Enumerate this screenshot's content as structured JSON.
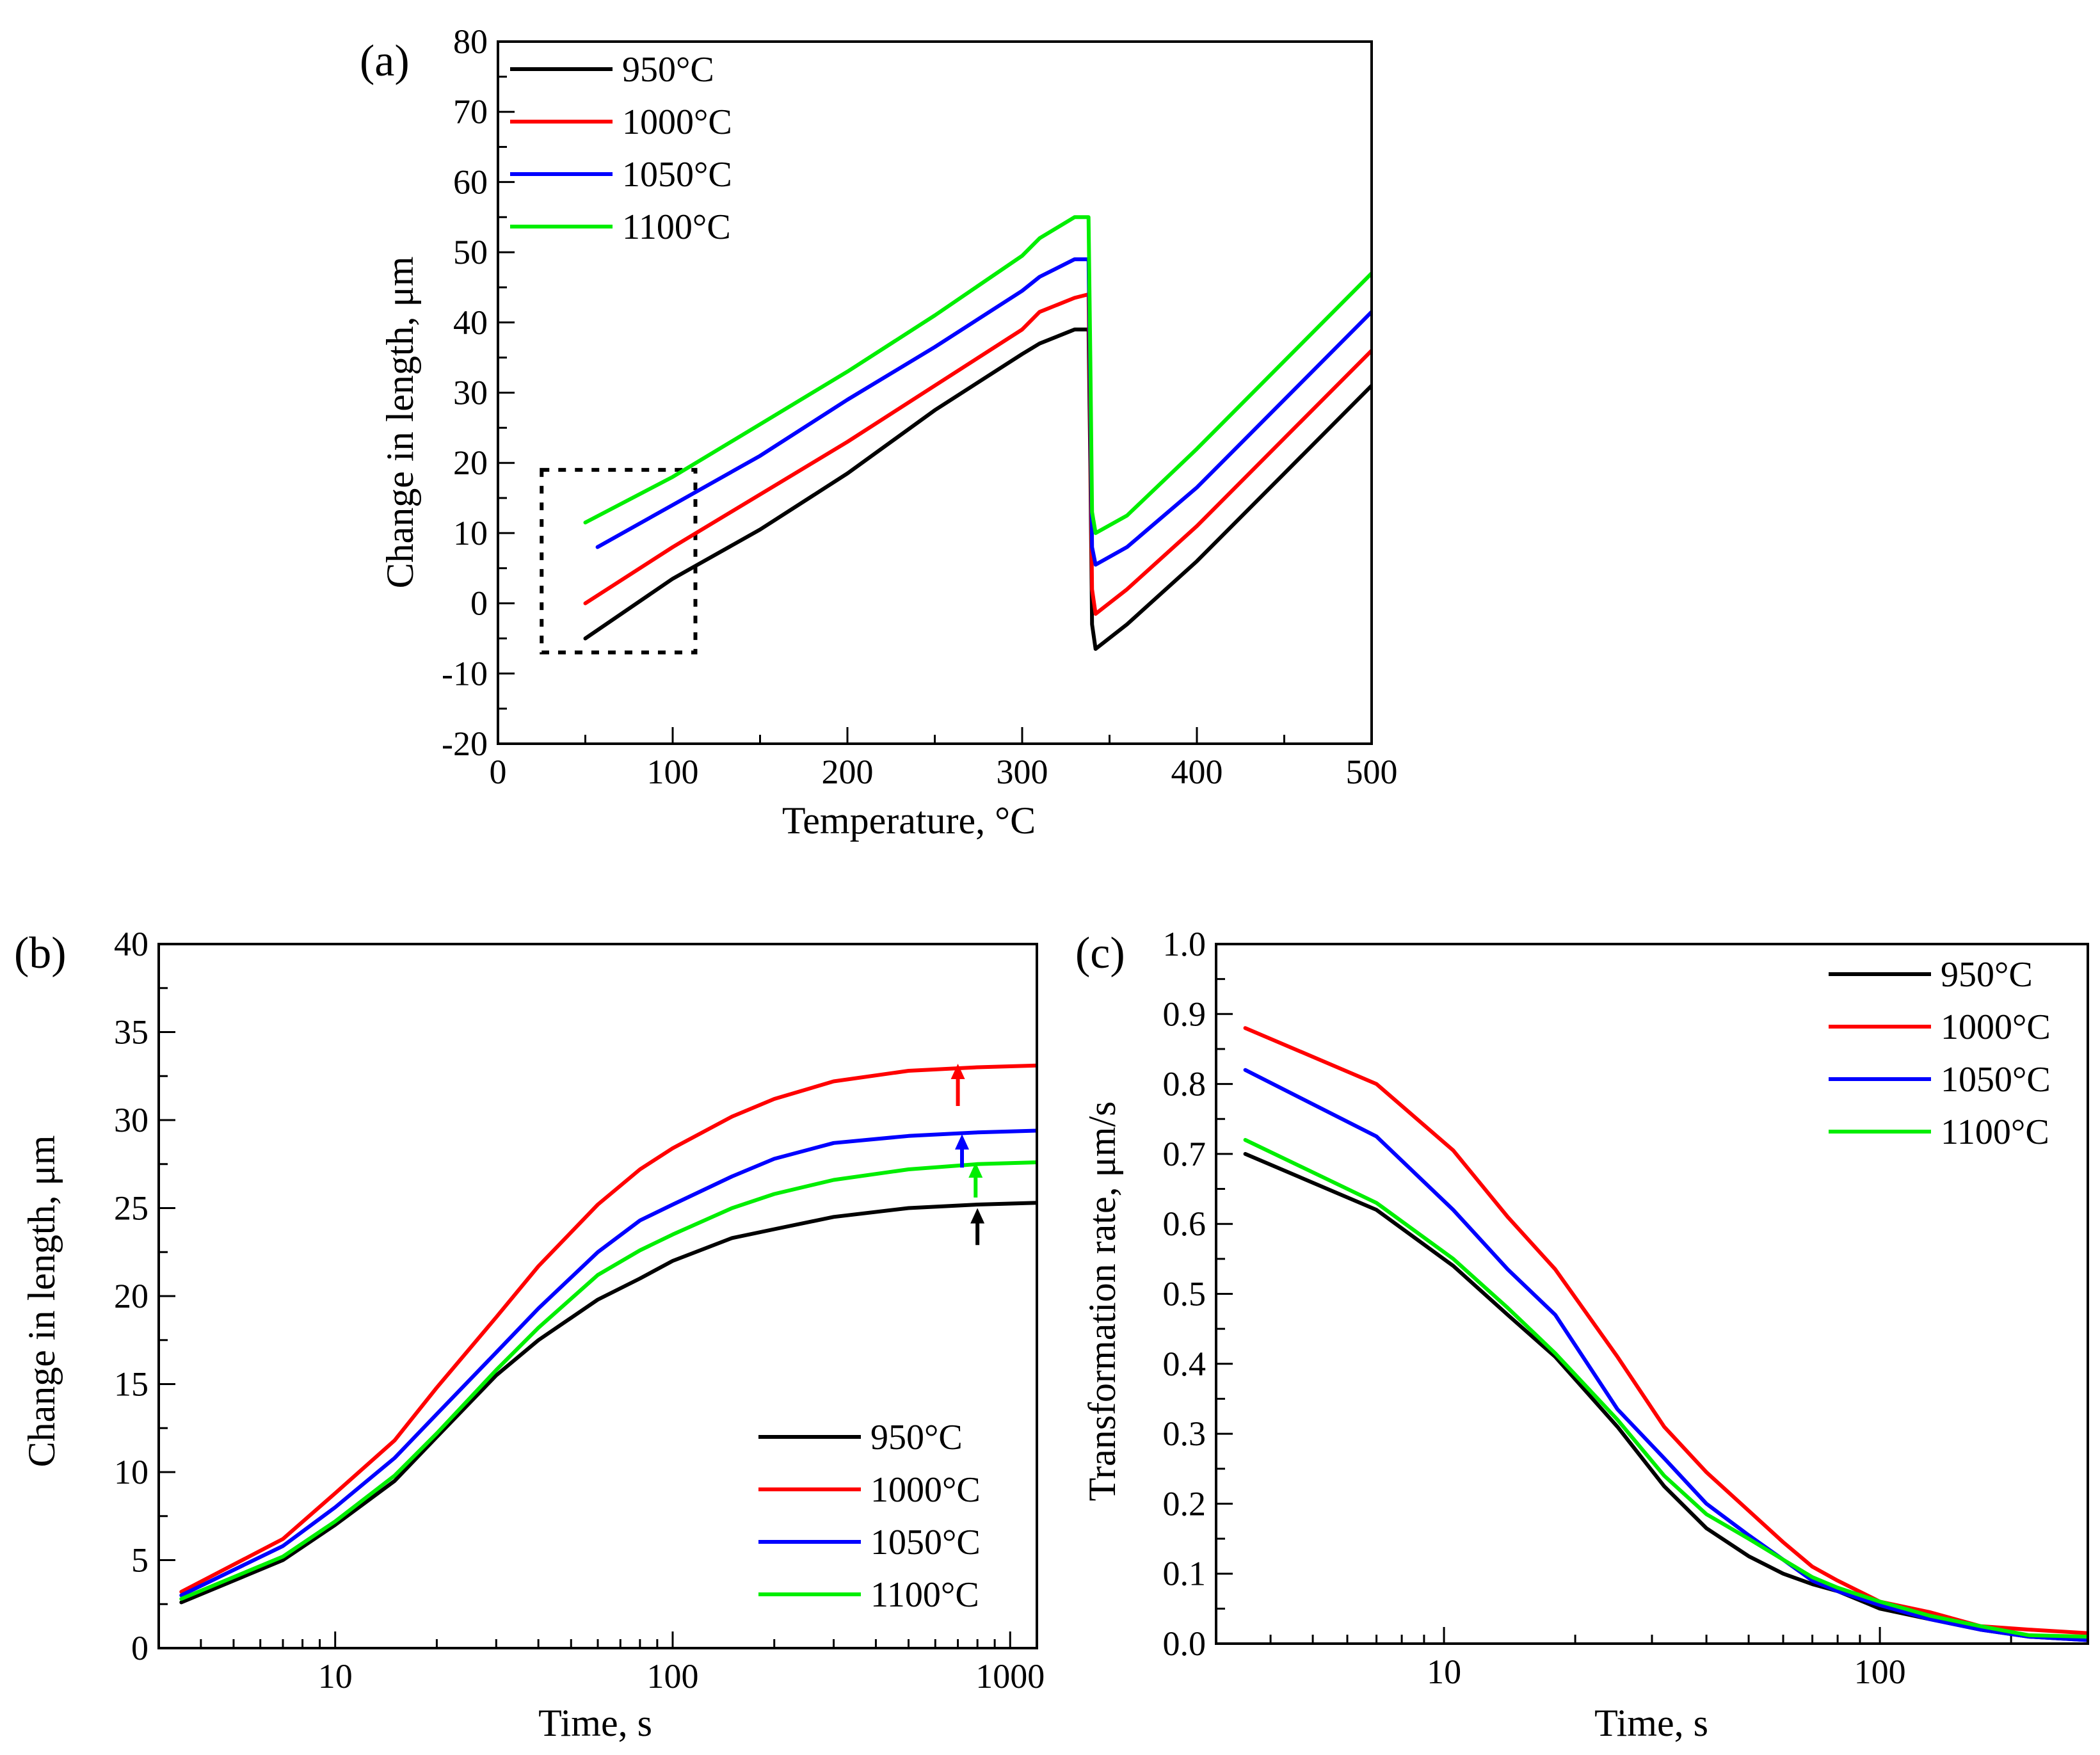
{
  "figure": {
    "colors": {
      "950°C": "#000000",
      "1000°C": "#ff0000",
      "1050°C": "#0000ff",
      "1100°C": "#00ee00"
    }
  },
  "chart_data": [
    {
      "id": "a",
      "panel_label": "(a)",
      "type": "line",
      "xlabel": "Temperature, °C",
      "ylabel": "Change in length, μm",
      "xlim": [
        0,
        500
      ],
      "ylim": [
        -20,
        80
      ],
      "xticks": [
        0,
        100,
        200,
        300,
        400,
        500
      ],
      "xtick_labels": [
        "0",
        "100",
        "200",
        "300",
        "400",
        "500"
      ],
      "yticks": [
        -20,
        -10,
        0,
        10,
        20,
        30,
        40,
        50,
        60,
        70,
        80
      ],
      "ytick_labels": [
        "-20",
        "-10",
        "0",
        "10",
        "20",
        "30",
        "40",
        "50",
        "60",
        "70",
        "80"
      ],
      "legend_position": "top-left",
      "annotation": {
        "type": "dashed-box",
        "x_range": [
          25,
          113
        ],
        "y_range": [
          -7,
          19
        ]
      },
      "series": [
        {
          "name": "950°C",
          "color": "#000000",
          "points": [
            [
              50,
              -5
            ],
            [
              100,
              3.5
            ],
            [
              150,
              10.5
            ],
            [
              200,
              18.5
            ],
            [
              250,
              27.5
            ],
            [
              300,
              35.5
            ],
            [
              310,
              37
            ],
            [
              330,
              39
            ],
            [
              338,
              39
            ],
            [
              339,
              20
            ],
            [
              340,
              -3
            ],
            [
              342,
              -6.5
            ],
            [
              360,
              -3
            ],
            [
              400,
              6
            ],
            [
              450,
              18.5
            ],
            [
              500,
              31
            ]
          ]
        },
        {
          "name": "1000°C",
          "color": "#ff0000",
          "points": [
            [
              50,
              0
            ],
            [
              100,
              8
            ],
            [
              150,
              15.5
            ],
            [
              200,
              23
            ],
            [
              250,
              31
            ],
            [
              300,
              39
            ],
            [
              310,
              41.5
            ],
            [
              330,
              43.5
            ],
            [
              338,
              44
            ],
            [
              339,
              25
            ],
            [
              340,
              2
            ],
            [
              342,
              -1.5
            ],
            [
              360,
              2
            ],
            [
              400,
              11
            ],
            [
              450,
              23.5
            ],
            [
              500,
              36
            ]
          ]
        },
        {
          "name": "1050°C",
          "color": "#0000ff",
          "points": [
            [
              57,
              8
            ],
            [
              100,
              14
            ],
            [
              150,
              21
            ],
            [
              200,
              29
            ],
            [
              250,
              36.5
            ],
            [
              300,
              44.5
            ],
            [
              310,
              46.5
            ],
            [
              330,
              49
            ],
            [
              338,
              49
            ],
            [
              339,
              30
            ],
            [
              340,
              8
            ],
            [
              342,
              5.5
            ],
            [
              360,
              8
            ],
            [
              400,
              16.5
            ],
            [
              450,
              29
            ],
            [
              500,
              41.5
            ]
          ]
        },
        {
          "name": "1100°C",
          "color": "#00ee00",
          "points": [
            [
              50,
              11.5
            ],
            [
              100,
              18
            ],
            [
              150,
              25.5
            ],
            [
              200,
              33
            ],
            [
              250,
              41
            ],
            [
              300,
              49.5
            ],
            [
              310,
              52
            ],
            [
              330,
              55
            ],
            [
              338,
              55
            ],
            [
              339,
              35
            ],
            [
              340,
              13
            ],
            [
              342,
              10
            ],
            [
              360,
              12.5
            ],
            [
              400,
              22
            ],
            [
              450,
              34.5
            ],
            [
              500,
              47
            ]
          ]
        }
      ]
    },
    {
      "id": "b",
      "panel_label": "(b)",
      "type": "line",
      "xscale": "log",
      "xlabel": "Time, s",
      "ylabel": "Change in length, μm",
      "xlim": [
        3,
        1200
      ],
      "ylim": [
        0,
        40
      ],
      "xticks": [
        10,
        100,
        1000
      ],
      "xtick_labels": [
        "10",
        "100",
        "1000"
      ],
      "yticks": [
        0,
        5,
        10,
        15,
        20,
        25,
        30,
        35,
        40
      ],
      "ytick_labels": [
        "0",
        "5",
        "10",
        "15",
        "20",
        "25",
        "30",
        "35",
        "40"
      ],
      "legend_position": "bottom-right",
      "markers": [
        {
          "type": "arrow",
          "series": "1000°C",
          "x": 700,
          "y_tail": 30.8,
          "y_head": 33.2,
          "color": "#ff0000"
        },
        {
          "type": "arrow",
          "series": "1050°C",
          "x": 720,
          "y_tail": 27.3,
          "y_head": 29.2,
          "color": "#0000ff"
        },
        {
          "type": "arrow",
          "series": "1100°C",
          "x": 790,
          "y_tail": 25.6,
          "y_head": 27.6,
          "color": "#00ee00"
        },
        {
          "type": "arrow",
          "series": "950°C",
          "x": 800,
          "y_tail": 22.9,
          "y_head": 25.0,
          "color": "#000000"
        }
      ],
      "series": [
        {
          "name": "950°C",
          "color": "#000000",
          "points": [
            [
              3.5,
              2.6
            ],
            [
              7,
              5
            ],
            [
              10,
              7
            ],
            [
              15,
              9.5
            ],
            [
              20,
              12
            ],
            [
              30,
              15.5
            ],
            [
              40,
              17.5
            ],
            [
              60,
              19.8
            ],
            [
              80,
              21
            ],
            [
              100,
              22
            ],
            [
              150,
              23.3
            ],
            [
              200,
              23.8
            ],
            [
              300,
              24.5
            ],
            [
              500,
              25
            ],
            [
              800,
              25.2
            ],
            [
              1200,
              25.3
            ]
          ]
        },
        {
          "name": "1000°C",
          "color": "#ff0000",
          "points": [
            [
              3.5,
              3.2
            ],
            [
              7,
              6.2
            ],
            [
              10,
              8.8
            ],
            [
              15,
              11.8
            ],
            [
              20,
              14.8
            ],
            [
              30,
              18.8
            ],
            [
              40,
              21.7
            ],
            [
              60,
              25.2
            ],
            [
              80,
              27.2
            ],
            [
              100,
              28.4
            ],
            [
              150,
              30.2
            ],
            [
              200,
              31.2
            ],
            [
              300,
              32.2
            ],
            [
              500,
              32.8
            ],
            [
              800,
              33
            ],
            [
              1200,
              33.1
            ]
          ]
        },
        {
          "name": "1050°C",
          "color": "#0000ff",
          "points": [
            [
              3.5,
              3
            ],
            [
              7,
              5.8
            ],
            [
              10,
              8
            ],
            [
              15,
              10.8
            ],
            [
              20,
              13.3
            ],
            [
              30,
              16.8
            ],
            [
              40,
              19.3
            ],
            [
              60,
              22.5
            ],
            [
              80,
              24.3
            ],
            [
              100,
              25.2
            ],
            [
              150,
              26.8
            ],
            [
              200,
              27.8
            ],
            [
              300,
              28.7
            ],
            [
              500,
              29.1
            ],
            [
              800,
              29.3
            ],
            [
              1200,
              29.4
            ]
          ]
        },
        {
          "name": "1100°C",
          "color": "#00ee00",
          "points": [
            [
              3.5,
              2.8
            ],
            [
              7,
              5.2
            ],
            [
              10,
              7.2
            ],
            [
              15,
              9.8
            ],
            [
              20,
              12.2
            ],
            [
              30,
              15.8
            ],
            [
              40,
              18.2
            ],
            [
              60,
              21.2
            ],
            [
              80,
              22.6
            ],
            [
              100,
              23.5
            ],
            [
              150,
              25
            ],
            [
              200,
              25.8
            ],
            [
              300,
              26.6
            ],
            [
              500,
              27.2
            ],
            [
              800,
              27.5
            ],
            [
              1200,
              27.6
            ]
          ]
        }
      ]
    },
    {
      "id": "c",
      "panel_label": "(c)",
      "type": "line",
      "xscale": "log",
      "xlabel": "Time, s",
      "ylabel": "Transformation rate, μm/s",
      "xlim": [
        3,
        300
      ],
      "ylim": [
        0,
        1
      ],
      "xticks": [
        10,
        100
      ],
      "xtick_labels": [
        "10",
        "100"
      ],
      "yticks": [
        0,
        0.1,
        0.2,
        0.3,
        0.4,
        0.5,
        0.6,
        0.7,
        0.8,
        0.9,
        1.0
      ],
      "ytick_labels": [
        "0.0",
        "0.1",
        "0.2",
        "0.3",
        "0.4",
        "0.5",
        "0.6",
        "0.7",
        "0.8",
        "0.9",
        "1.0"
      ],
      "legend_position": "top-right",
      "series": [
        {
          "name": "950°C",
          "color": "#000000",
          "points": [
            [
              3.5,
              0.7
            ],
            [
              7,
              0.62
            ],
            [
              10.5,
              0.54
            ],
            [
              14,
              0.47
            ],
            [
              18,
              0.41
            ],
            [
              25,
              0.31
            ],
            [
              32,
              0.225
            ],
            [
              40,
              0.165
            ],
            [
              50,
              0.125
            ],
            [
              60,
              0.1
            ],
            [
              70,
              0.085
            ],
            [
              80,
              0.075
            ],
            [
              100,
              0.05
            ],
            [
              130,
              0.035
            ],
            [
              170,
              0.02
            ],
            [
              220,
              0.01
            ],
            [
              300,
              0.005
            ]
          ]
        },
        {
          "name": "1000°C",
          "color": "#ff0000",
          "points": [
            [
              3.5,
              0.88
            ],
            [
              7,
              0.8
            ],
            [
              10.5,
              0.705
            ],
            [
              14,
              0.61
            ],
            [
              18,
              0.535
            ],
            [
              25,
              0.41
            ],
            [
              32,
              0.31
            ],
            [
              40,
              0.245
            ],
            [
              50,
              0.19
            ],
            [
              60,
              0.145
            ],
            [
              70,
              0.11
            ],
            [
              80,
              0.09
            ],
            [
              100,
              0.06
            ],
            [
              130,
              0.045
            ],
            [
              170,
              0.025
            ],
            [
              220,
              0.02
            ],
            [
              300,
              0.015
            ]
          ]
        },
        {
          "name": "1050°C",
          "color": "#0000ff",
          "points": [
            [
              3.5,
              0.82
            ],
            [
              7,
              0.725
            ],
            [
              10.5,
              0.62
            ],
            [
              14,
              0.535
            ],
            [
              18,
              0.47
            ],
            [
              25,
              0.335
            ],
            [
              32,
              0.265
            ],
            [
              40,
              0.2
            ],
            [
              50,
              0.155
            ],
            [
              60,
              0.12
            ],
            [
              70,
              0.09
            ],
            [
              80,
              0.075
            ],
            [
              100,
              0.055
            ],
            [
              130,
              0.035
            ],
            [
              170,
              0.02
            ],
            [
              220,
              0.01
            ],
            [
              300,
              0.005
            ]
          ]
        },
        {
          "name": "1100°C",
          "color": "#00ee00",
          "points": [
            [
              3.5,
              0.72
            ],
            [
              7,
              0.63
            ],
            [
              10.5,
              0.55
            ],
            [
              14,
              0.48
            ],
            [
              18,
              0.415
            ],
            [
              25,
              0.32
            ],
            [
              32,
              0.24
            ],
            [
              40,
              0.185
            ],
            [
              50,
              0.15
            ],
            [
              60,
              0.12
            ],
            [
              70,
              0.095
            ],
            [
              80,
              0.08
            ],
            [
              100,
              0.06
            ],
            [
              130,
              0.04
            ],
            [
              170,
              0.025
            ],
            [
              220,
              0.012
            ],
            [
              300,
              0.01
            ]
          ]
        }
      ]
    }
  ]
}
